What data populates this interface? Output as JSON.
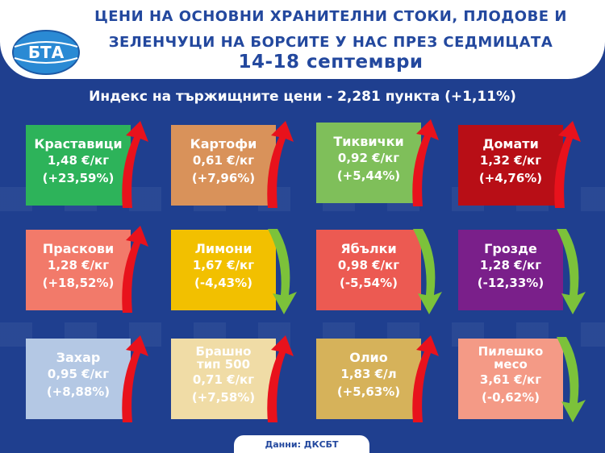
{
  "header": {
    "title_line1": "ЦЕНИ НА ОСНОВНИ ХРАНИТЕЛНИ СТОКИ, ПЛОДОВЕ И",
    "title_line2": "ЗЕЛЕНЧУЦИ НА БОРСИТЕ У НАС ПРЕЗ СЕДМИЦАТА",
    "dates": "14-18 септември",
    "logo_text": "БТА"
  },
  "subtitle": "Индекс на тържищните цени - 2,281 пункта (+1,11%)",
  "tiles": [
    {
      "name": "Краставици",
      "price": "1,48 €/кг",
      "change": "(+23,59%)",
      "color": "#2db35a",
      "direction": "up"
    },
    {
      "name": "Картофи",
      "price": "0,61 €/кг",
      "change": "(+7,96%)",
      "color": "#d9925a",
      "direction": "up"
    },
    {
      "name": "Тиквички",
      "price": "0,92 €/кг",
      "change": "(+5,44%)",
      "color": "#7fbf5a",
      "direction": "up"
    },
    {
      "name": "Домати",
      "price": "1,32 €/кг",
      "change": "(+4,76%)",
      "color": "#b80e16",
      "direction": "up"
    },
    {
      "name": "Праскови",
      "price": "1,28 €/кг",
      "change": "(+18,52%)",
      "color": "#f27a6a",
      "direction": "up"
    },
    {
      "name": "Лимони",
      "price": "1,67 €/кг",
      "change": "(-4,43%)",
      "color": "#f2c000",
      "direction": "down"
    },
    {
      "name": "Ябълки",
      "price": "0,98 €/кг",
      "change": "(-5,54%)",
      "color": "#ec5a52",
      "direction": "down"
    },
    {
      "name": "Грозде",
      "price": "1,28 €/кг",
      "change": "(-12,33%)",
      "color": "#7a1f8a",
      "direction": "down"
    },
    {
      "name": "Захар",
      "price": "0,95 €/кг",
      "change": "(+8,88%)",
      "color": "#b4c8e4",
      "direction": "up"
    },
    {
      "name_l1": "Брашно",
      "name_l2": "тип 500",
      "price": "0,71 €/кг",
      "change": "(+7,58%)",
      "color": "#f0dca6",
      "direction": "up"
    },
    {
      "name": "Олио",
      "price": "1,83 €/л",
      "change": "(+5,63%)",
      "color": "#d6b25a",
      "direction": "up"
    },
    {
      "name_l1": "Пилешко",
      "name_l2": "месо",
      "price": "3,61 €/кг",
      "change": "(-0,62%)",
      "color": "#f49a86",
      "direction": "down"
    }
  ],
  "footer": "Данни: ДКСБТ",
  "colors": {
    "background": "#1f3f8f",
    "up_arrow": "#e8121c",
    "down_arrow": "#7cc23a",
    "header_text": "#23489e"
  }
}
